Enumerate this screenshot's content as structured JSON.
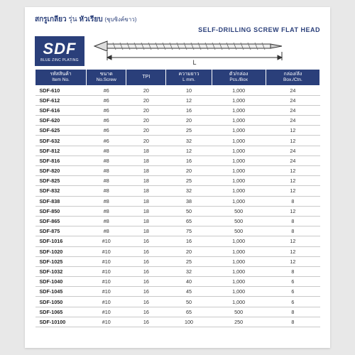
{
  "title": {
    "thai": "สกรูเกลียว",
    "model_prefix": "รุ่น",
    "model": "หัวเรียบ",
    "sub": "(ชุบซิงค์ขาว)"
  },
  "subtitle": "SELF-DRILLING SCREW FLAT HEAD",
  "badge": {
    "code": "SDF",
    "plating": "BLUE ZINC PLATING"
  },
  "diagram": {
    "dim_label": "L"
  },
  "columns": [
    {
      "th": "รหัสสินค้า",
      "en": "Item No."
    },
    {
      "th": "ขนาด",
      "en": "No.Screw"
    },
    {
      "th": "TPI",
      "en": ""
    },
    {
      "th": "ความยาว",
      "en": "L mm."
    },
    {
      "th": "ตัว/กล่อง",
      "en": "Pcs./Box"
    },
    {
      "th": "กล่อง/ลัง",
      "en": "Box./Ctn."
    }
  ],
  "rows": [
    {
      "item": "SDF-610",
      "size": "#6",
      "tpi": "20",
      "len": "10",
      "pcs": "1,000",
      "box": "24"
    },
    {
      "item": "SDF-612",
      "size": "#6",
      "tpi": "20",
      "len": "12",
      "pcs": "1,000",
      "box": "24"
    },
    {
      "item": "SDF-616",
      "size": "#6",
      "tpi": "20",
      "len": "16",
      "pcs": "1,000",
      "box": "24"
    },
    {
      "item": "SDF-620",
      "size": "#6",
      "tpi": "20",
      "len": "20",
      "pcs": "1,000",
      "box": "24"
    },
    {
      "item": "SDF-625",
      "size": "#6",
      "tpi": "20",
      "len": "25",
      "pcs": "1,000",
      "box": "12"
    },
    {
      "item": "SDF-632",
      "size": "#6",
      "tpi": "20",
      "len": "32",
      "pcs": "1,000",
      "box": "12"
    },
    {
      "item": "SDF-812",
      "size": "#8",
      "tpi": "18",
      "len": "12",
      "pcs": "1,000",
      "box": "24",
      "break": true
    },
    {
      "item": "SDF-816",
      "size": "#8",
      "tpi": "18",
      "len": "16",
      "pcs": "1,000",
      "box": "24"
    },
    {
      "item": "SDF-820",
      "size": "#8",
      "tpi": "18",
      "len": "20",
      "pcs": "1,000",
      "box": "12"
    },
    {
      "item": "SDF-825",
      "size": "#8",
      "tpi": "18",
      "len": "25",
      "pcs": "1,000",
      "box": "12"
    },
    {
      "item": "SDF-832",
      "size": "#8",
      "tpi": "18",
      "len": "32",
      "pcs": "1,000",
      "box": "12"
    },
    {
      "item": "SDF-838",
      "size": "#8",
      "tpi": "18",
      "len": "38",
      "pcs": "1,000",
      "box": "8"
    },
    {
      "item": "SDF-850",
      "size": "#8",
      "tpi": "18",
      "len": "50",
      "pcs": "500",
      "box": "12"
    },
    {
      "item": "SDF-865",
      "size": "#8",
      "tpi": "18",
      "len": "65",
      "pcs": "500",
      "box": "8"
    },
    {
      "item": "SDF-875",
      "size": "#8",
      "tpi": "18",
      "len": "75",
      "pcs": "500",
      "box": "8"
    },
    {
      "item": "SDF-1016",
      "size": "#10",
      "tpi": "16",
      "len": "16",
      "pcs": "1,000",
      "box": "12",
      "break": true
    },
    {
      "item": "SDF-1020",
      "size": "#10",
      "tpi": "16",
      "len": "20",
      "pcs": "1,000",
      "box": "12"
    },
    {
      "item": "SDF-1025",
      "size": "#10",
      "tpi": "16",
      "len": "25",
      "pcs": "1,000",
      "box": "12"
    },
    {
      "item": "SDF-1032",
      "size": "#10",
      "tpi": "16",
      "len": "32",
      "pcs": "1,000",
      "box": "8"
    },
    {
      "item": "SDF-1040",
      "size": "#10",
      "tpi": "16",
      "len": "40",
      "pcs": "1,000",
      "box": "6"
    },
    {
      "item": "SDF-1045",
      "size": "#10",
      "tpi": "16",
      "len": "45",
      "pcs": "1,000",
      "box": "6"
    },
    {
      "item": "SDF-1050",
      "size": "#10",
      "tpi": "16",
      "len": "50",
      "pcs": "1,000",
      "box": "6"
    },
    {
      "item": "SDF-1065",
      "size": "#10",
      "tpi": "16",
      "len": "65",
      "pcs": "500",
      "box": "8"
    },
    {
      "item": "SDF-10100",
      "size": "#10",
      "tpi": "16",
      "len": "100",
      "pcs": "250",
      "box": "8"
    }
  ],
  "colors": {
    "brand": "#2a3f7a",
    "row_border": "#c9c9c9",
    "bg": "#ffffff"
  }
}
